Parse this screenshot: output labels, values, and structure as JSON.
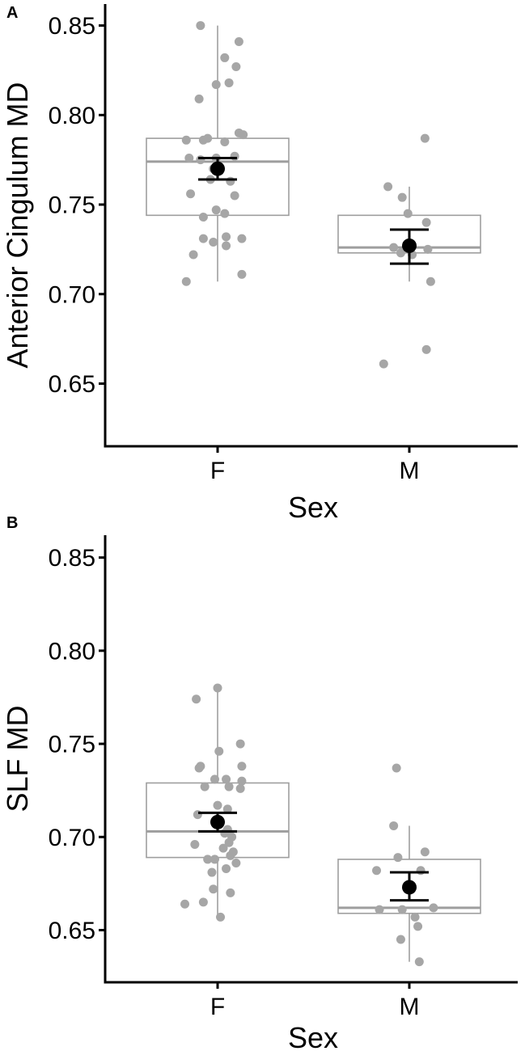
{
  "colors": {
    "points": "#a6a6a6",
    "box": "#9e9e9e",
    "mean": "#000000",
    "axis": "#000000",
    "background": "#ffffff"
  },
  "chart_data": [
    {
      "panel_label": "A",
      "type": "box-with-jitter",
      "xlabel": "Sex",
      "ylabel": "Anterior Cingulum MD",
      "categories": [
        "F",
        "M"
      ],
      "ylim": [
        0.615,
        0.862
      ],
      "yticks": [
        "0.65",
        "0.70",
        "0.75",
        "0.80",
        "0.85"
      ],
      "ytick_values": [
        0.65,
        0.7,
        0.75,
        0.8,
        0.85
      ],
      "grid": false,
      "groups": [
        {
          "category": "F",
          "box": {
            "whisker_low": 0.707,
            "q1": 0.744,
            "median": 0.774,
            "q3": 0.787,
            "whisker_high": 0.85
          },
          "mean": 0.77,
          "ci": [
            0.764,
            0.776
          ],
          "points": [
            {
              "j": -0.12,
              "y": 0.85
            },
            {
              "j": 0.15,
              "y": 0.841
            },
            {
              "j": 0.05,
              "y": 0.832
            },
            {
              "j": 0.13,
              "y": 0.827
            },
            {
              "j": 0.08,
              "y": 0.818
            },
            {
              "j": -0.01,
              "y": 0.817
            },
            {
              "j": -0.13,
              "y": 0.809
            },
            {
              "j": 0.15,
              "y": 0.79
            },
            {
              "j": 0.18,
              "y": 0.789
            },
            {
              "j": -0.07,
              "y": 0.787
            },
            {
              "j": -0.22,
              "y": 0.786
            },
            {
              "j": -0.1,
              "y": 0.786
            },
            {
              "j": 0.05,
              "y": 0.785
            },
            {
              "j": -0.2,
              "y": 0.776
            },
            {
              "j": -0.01,
              "y": 0.776
            },
            {
              "j": 0.12,
              "y": 0.777
            },
            {
              "j": -0.12,
              "y": 0.775
            },
            {
              "j": -0.03,
              "y": 0.77
            },
            {
              "j": -0.05,
              "y": 0.764
            },
            {
              "j": 0.09,
              "y": 0.763
            },
            {
              "j": -0.19,
              "y": 0.756
            },
            {
              "j": 0.12,
              "y": 0.755
            },
            {
              "j": -0.01,
              "y": 0.747
            },
            {
              "j": -0.1,
              "y": 0.743
            },
            {
              "j": 0.05,
              "y": 0.745
            },
            {
              "j": -0.1,
              "y": 0.731
            },
            {
              "j": 0.06,
              "y": 0.732
            },
            {
              "j": 0.17,
              "y": 0.731
            },
            {
              "j": -0.03,
              "y": 0.729
            },
            {
              "j": 0.06,
              "y": 0.727
            },
            {
              "j": -0.17,
              "y": 0.722
            },
            {
              "j": 0.17,
              "y": 0.711
            },
            {
              "j": -0.22,
              "y": 0.707
            }
          ]
        },
        {
          "category": "M",
          "box": {
            "whisker_low": 0.707,
            "q1": 0.723,
            "median": 0.726,
            "q3": 0.744,
            "whisker_high": 0.76
          },
          "mean": 0.727,
          "ci": [
            0.717,
            0.736
          ],
          "points": [
            {
              "j": 0.11,
              "y": 0.787
            },
            {
              "j": -0.15,
              "y": 0.76
            },
            {
              "j": -0.05,
              "y": 0.754
            },
            {
              "j": -0.01,
              "y": 0.745
            },
            {
              "j": 0.12,
              "y": 0.74
            },
            {
              "j": -0.11,
              "y": 0.726
            },
            {
              "j": -0.06,
              "y": 0.723
            },
            {
              "j": 0.02,
              "y": 0.722
            },
            {
              "j": 0.13,
              "y": 0.725
            },
            {
              "j": 0.15,
              "y": 0.707
            },
            {
              "j": 0.12,
              "y": 0.669
            },
            {
              "j": -0.18,
              "y": 0.661
            }
          ]
        }
      ]
    },
    {
      "panel_label": "B",
      "type": "box-with-jitter",
      "xlabel": "Sex",
      "ylabel": "SLF MD",
      "categories": [
        "F",
        "M"
      ],
      "ylim": [
        0.622,
        0.862
      ],
      "yticks": [
        "0.65",
        "0.70",
        "0.75",
        "0.80",
        "0.85"
      ],
      "ytick_values": [
        0.65,
        0.7,
        0.75,
        0.8,
        0.85
      ],
      "grid": false,
      "groups": [
        {
          "category": "F",
          "box": {
            "whisker_low": 0.657,
            "q1": 0.689,
            "median": 0.703,
            "q3": 0.729,
            "whisker_high": 0.78
          },
          "mean": 0.708,
          "ci": [
            0.703,
            0.713
          ],
          "points": [
            {
              "j": 0.0,
              "y": 0.78
            },
            {
              "j": -0.15,
              "y": 0.774
            },
            {
              "j": 0.16,
              "y": 0.75
            },
            {
              "j": 0.01,
              "y": 0.746
            },
            {
              "j": -0.12,
              "y": 0.738
            },
            {
              "j": -0.13,
              "y": 0.737
            },
            {
              "j": 0.17,
              "y": 0.738
            },
            {
              "j": -0.02,
              "y": 0.731
            },
            {
              "j": 0.06,
              "y": 0.731
            },
            {
              "j": 0.17,
              "y": 0.73
            },
            {
              "j": -0.09,
              "y": 0.727
            },
            {
              "j": 0.08,
              "y": 0.727
            },
            {
              "j": 0.16,
              "y": 0.726
            },
            {
              "j": 0.0,
              "y": 0.717
            },
            {
              "j": -0.14,
              "y": 0.712
            },
            {
              "j": 0.07,
              "y": 0.715
            },
            {
              "j": 0.1,
              "y": 0.7
            },
            {
              "j": 0.07,
              "y": 0.704
            },
            {
              "j": 0.05,
              "y": 0.702
            },
            {
              "j": 0.08,
              "y": 0.697
            },
            {
              "j": -0.16,
              "y": 0.696
            },
            {
              "j": 0.04,
              "y": 0.694
            },
            {
              "j": 0.09,
              "y": 0.69
            },
            {
              "j": 0.11,
              "y": 0.692
            },
            {
              "j": -0.07,
              "y": 0.688
            },
            {
              "j": -0.02,
              "y": 0.688
            },
            {
              "j": 0.13,
              "y": 0.686
            },
            {
              "j": 0.06,
              "y": 0.683
            },
            {
              "j": -0.04,
              "y": 0.681
            },
            {
              "j": -0.03,
              "y": 0.672
            },
            {
              "j": 0.09,
              "y": 0.67
            },
            {
              "j": -0.23,
              "y": 0.664
            },
            {
              "j": -0.1,
              "y": 0.665
            },
            {
              "j": 0.02,
              "y": 0.657
            }
          ]
        },
        {
          "category": "M",
          "box": {
            "whisker_low": 0.633,
            "q1": 0.659,
            "median": 0.662,
            "q3": 0.688,
            "whisker_high": 0.706
          },
          "mean": 0.673,
          "ci": [
            0.666,
            0.681
          ],
          "points": [
            {
              "j": -0.09,
              "y": 0.737
            },
            {
              "j": -0.11,
              "y": 0.706
            },
            {
              "j": 0.11,
              "y": 0.692
            },
            {
              "j": -0.08,
              "y": 0.689
            },
            {
              "j": -0.23,
              "y": 0.682
            },
            {
              "j": 0.08,
              "y": 0.682
            },
            {
              "j": -0.21,
              "y": 0.661
            },
            {
              "j": -0.05,
              "y": 0.661
            },
            {
              "j": 0.17,
              "y": 0.662
            },
            {
              "j": 0.04,
              "y": 0.657
            },
            {
              "j": 0.06,
              "y": 0.652
            },
            {
              "j": -0.06,
              "y": 0.645
            },
            {
              "j": 0.07,
              "y": 0.633
            }
          ]
        }
      ]
    }
  ]
}
